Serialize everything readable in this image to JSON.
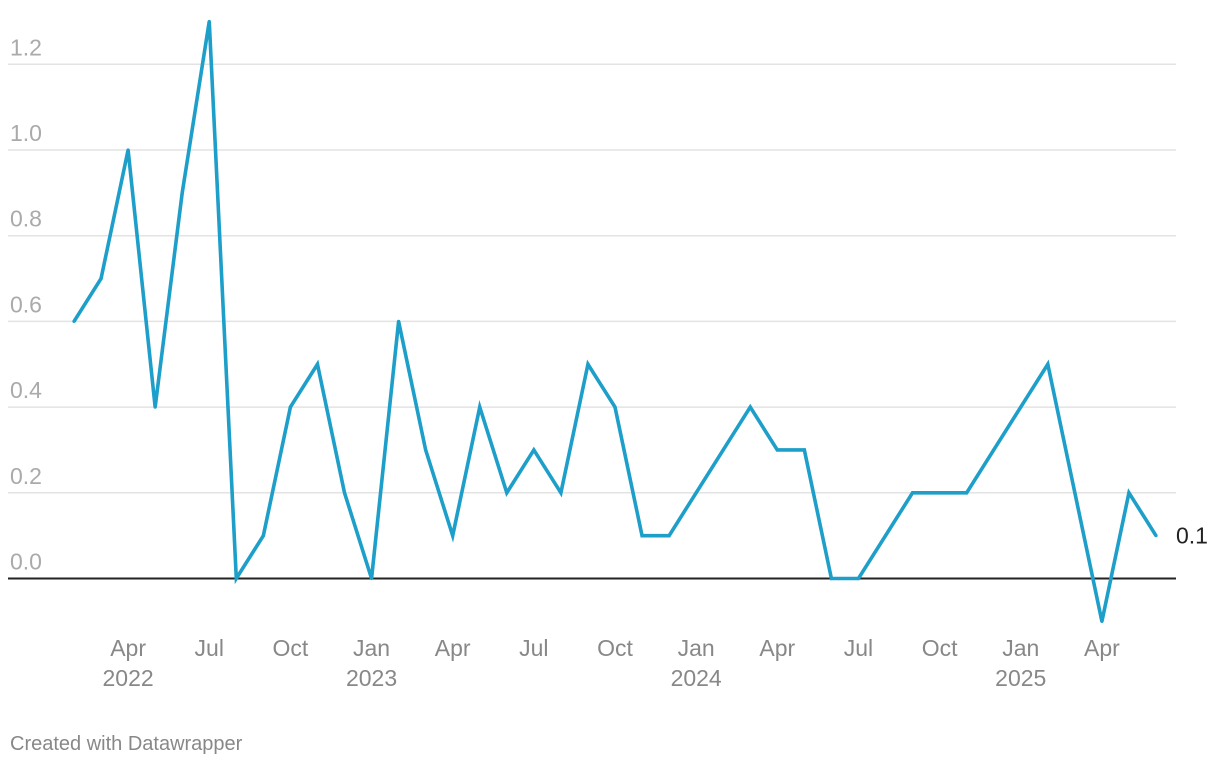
{
  "chart_data": {
    "type": "line",
    "title": "",
    "xlabel": "",
    "ylabel": "",
    "ylim": [
      -0.1,
      1.3
    ],
    "y_ticks": [
      "0.0",
      "0.2",
      "0.4",
      "0.6",
      "0.8",
      "1.0",
      "1.2"
    ],
    "grid": true,
    "x": [
      "2022-02",
      "2022-03",
      "2022-04",
      "2022-05",
      "2022-06",
      "2022-07",
      "2022-08",
      "2022-09",
      "2022-10",
      "2022-11",
      "2022-12",
      "2023-01",
      "2023-02",
      "2023-03",
      "2023-04",
      "2023-05",
      "2023-06",
      "2023-07",
      "2023-08",
      "2023-09",
      "2023-10",
      "2023-11",
      "2023-12",
      "2024-01",
      "2024-02",
      "2024-03",
      "2024-04",
      "2024-05",
      "2024-06",
      "2024-07",
      "2024-08",
      "2024-09",
      "2024-10",
      "2024-11",
      "2024-12",
      "2025-01",
      "2025-02",
      "2025-03",
      "2025-04",
      "2025-05",
      "2025-06"
    ],
    "x_ticks": [
      {
        "month": "2022-04",
        "label": "Apr",
        "year": "2022"
      },
      {
        "month": "2022-07",
        "label": "Jul",
        "year": ""
      },
      {
        "month": "2022-10",
        "label": "Oct",
        "year": ""
      },
      {
        "month": "2023-01",
        "label": "Jan",
        "year": "2023"
      },
      {
        "month": "2023-04",
        "label": "Apr",
        "year": ""
      },
      {
        "month": "2023-07",
        "label": "Jul",
        "year": ""
      },
      {
        "month": "2023-10",
        "label": "Oct",
        "year": ""
      },
      {
        "month": "2024-01",
        "label": "Jan",
        "year": "2024"
      },
      {
        "month": "2024-04",
        "label": "Apr",
        "year": ""
      },
      {
        "month": "2024-07",
        "label": "Jul",
        "year": ""
      },
      {
        "month": "2024-10",
        "label": "Oct",
        "year": ""
      },
      {
        "month": "2025-01",
        "label": "Jan",
        "year": "2025"
      },
      {
        "month": "2025-04",
        "label": "Apr",
        "year": ""
      }
    ],
    "series": [
      {
        "color": "#1d9fc9",
        "values": [
          0.6,
          0.7,
          1.0,
          0.4,
          0.9,
          1.3,
          0.0,
          0.1,
          0.4,
          0.5,
          0.2,
          0.0,
          0.6,
          0.3,
          0.1,
          0.4,
          0.2,
          0.3,
          0.2,
          0.5,
          0.4,
          0.1,
          0.1,
          0.2,
          0.3,
          0.4,
          0.3,
          0.3,
          0.0,
          0.0,
          0.1,
          0.2,
          0.2,
          0.2,
          0.3,
          0.4,
          0.5,
          0.2,
          -0.1,
          0.2,
          0.1
        ],
        "end_label": "0.1"
      }
    ]
  },
  "footer": {
    "credit": "Created with Datawrapper"
  }
}
